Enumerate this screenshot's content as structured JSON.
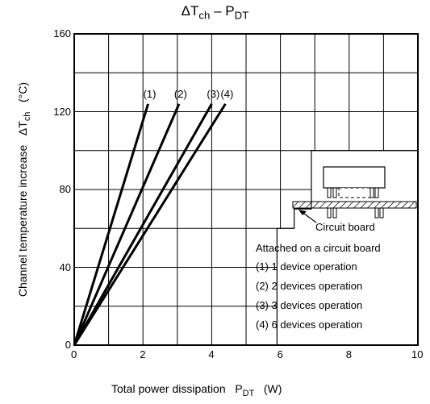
{
  "chart_data": {
    "type": "line",
    "title": "ΔT",
    "title_sub1": "ch",
    "title_mid": " – P",
    "title_sub2": "DT",
    "xlabel": "Total power dissipation",
    "xlabel_symbol": "P",
    "xlabel_sub": "DT",
    "xlabel_unit": "(W)",
    "ylabel": "Channel temperature increase",
    "ylabel_symbol": "ΔT",
    "ylabel_sub": "ch",
    "ylabel_unit": "(°C)",
    "xlim": [
      0,
      10
    ],
    "ylim": [
      0,
      160
    ],
    "x_ticks": [
      "0",
      "2",
      "4",
      "6",
      "8",
      "10"
    ],
    "y_ticks": [
      "0",
      "40",
      "80",
      "120",
      "160"
    ],
    "grid": true,
    "series": [
      {
        "name": "(1)",
        "x": [
          0,
          2.15
        ],
        "y": [
          0,
          124
        ]
      },
      {
        "name": "(2)",
        "x": [
          0,
          3.05
        ],
        "y": [
          0,
          124
        ]
      },
      {
        "name": "(3)",
        "x": [
          0,
          4.0
        ],
        "y": [
          0,
          124
        ]
      },
      {
        "name": "(4)",
        "x": [
          0,
          4.4
        ],
        "y": [
          0,
          124
        ]
      }
    ],
    "annotations": {
      "circuit_board_label": "Circuit board",
      "legend_title": "Attached on a circuit board",
      "legend_items": [
        "(1) 1 device operation",
        "(2) 2 devices operation",
        "(3) 3 devices operation",
        "(4) 6 devices operation"
      ]
    }
  }
}
